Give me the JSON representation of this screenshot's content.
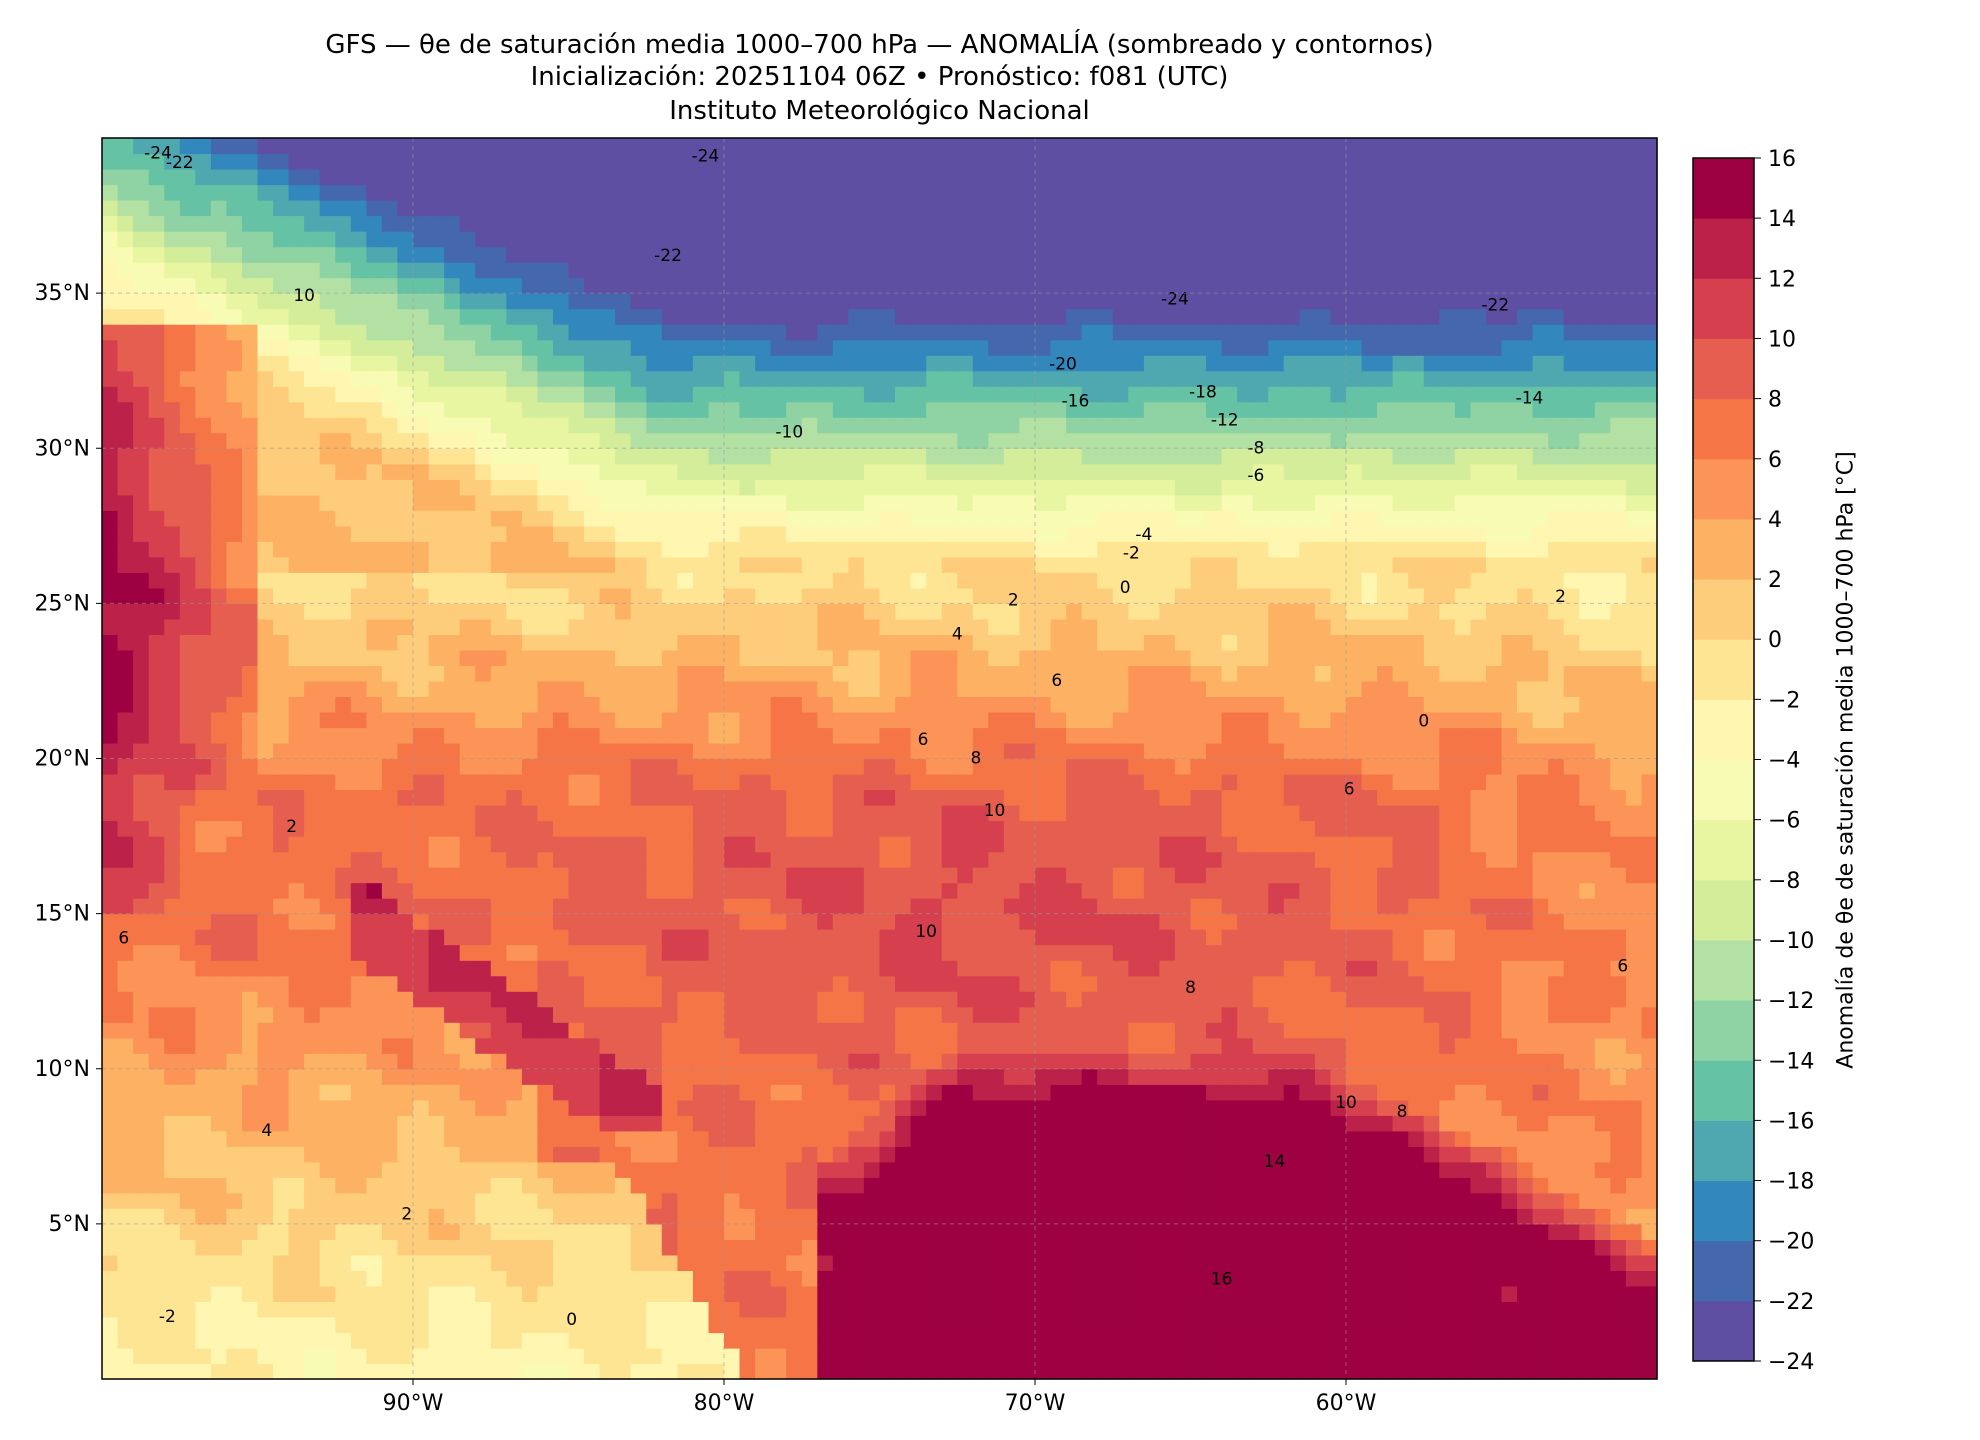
{
  "title": {
    "line1": "GFS — θe de saturación media 1000–700 hPa — ANOMALÍA (sombreado y contornos)",
    "line2": "Inicialización: 20251104 06Z   •   Pronóstico: f081 (UTC)",
    "line3": "Instituto Meteorológico Nacional"
  },
  "chart_data": {
    "type": "heatmap",
    "subtype": "filled-contour map",
    "extent": {
      "lon": [
        -100,
        -50
      ],
      "lat": [
        0,
        40
      ]
    },
    "lat_ticks": [
      {
        "value": 35,
        "label": "35°N"
      },
      {
        "value": 30,
        "label": "30°N"
      },
      {
        "value": 25,
        "label": "25°N"
      },
      {
        "value": 20,
        "label": "20°N"
      },
      {
        "value": 15,
        "label": "15°N"
      },
      {
        "value": 10,
        "label": "10°N"
      },
      {
        "value": 5,
        "label": "5°N"
      }
    ],
    "lon_ticks": [
      {
        "value": -90,
        "label": "90°W"
      },
      {
        "value": -80,
        "label": "80°W"
      },
      {
        "value": -70,
        "label": "70°W"
      },
      {
        "value": -60,
        "label": "60°W"
      }
    ],
    "grid": true,
    "colorbar": {
      "label": "Anomalía de θe de saturación media 1000–700 hPa [°C]",
      "range": [
        -24,
        16
      ],
      "ticks": [
        "16",
        "14",
        "12",
        "10",
        "8",
        "6",
        "4",
        "2",
        "0",
        "−2",
        "−4",
        "−6",
        "−8",
        "−10",
        "−12",
        "−14",
        "−16",
        "−18",
        "−20",
        "−22",
        "−24"
      ],
      "colors": [
        "#5e4fa2",
        "#4467ae",
        "#3288bd",
        "#4fa7b0",
        "#66c2a5",
        "#8fd3a4",
        "#b3e0a3",
        "#d4ed9b",
        "#e9f6a1",
        "#f7fbb3",
        "#fff7b1",
        "#fee593",
        "#fecd7c",
        "#fdb163",
        "#fb9456",
        "#f57547",
        "#e65e4f",
        "#d6404e",
        "#bb2149",
        "#9e0142"
      ],
      "position": "right"
    },
    "contour_labels": [
      {
        "text": "-24",
        "lon": -98.2,
        "lat": 39.5
      },
      {
        "text": "-22",
        "lon": -97.5,
        "lat": 39.2
      },
      {
        "text": "-24",
        "lon": -80.6,
        "lat": 39.4
      },
      {
        "text": "-22",
        "lon": -81.8,
        "lat": 36.2
      },
      {
        "text": "10",
        "lon": -93.5,
        "lat": 34.9
      },
      {
        "text": "-24",
        "lon": -65.5,
        "lat": 34.8
      },
      {
        "text": "-22",
        "lon": -55.2,
        "lat": 34.6
      },
      {
        "text": "-20",
        "lon": -69.1,
        "lat": 32.7
      },
      {
        "text": "-18",
        "lon": -64.6,
        "lat": 31.8
      },
      {
        "text": "-16",
        "lon": -68.7,
        "lat": 31.5
      },
      {
        "text": "-14",
        "lon": -54.1,
        "lat": 31.6
      },
      {
        "text": "-12",
        "lon": -63.9,
        "lat": 30.9
      },
      {
        "text": "-10",
        "lon": -77.9,
        "lat": 30.5
      },
      {
        "text": "-8",
        "lon": -62.9,
        "lat": 30.0
      },
      {
        "text": "-6",
        "lon": -62.9,
        "lat": 29.1
      },
      {
        "text": "-4",
        "lon": -66.5,
        "lat": 27.2
      },
      {
        "text": "-2",
        "lon": -66.9,
        "lat": 26.6
      },
      {
        "text": "0",
        "lon": -67.1,
        "lat": 25.5
      },
      {
        "text": "2",
        "lon": -70.7,
        "lat": 25.1
      },
      {
        "text": "2",
        "lon": -53.1,
        "lat": 25.2
      },
      {
        "text": "4",
        "lon": -72.5,
        "lat": 24.0
      },
      {
        "text": "6",
        "lon": -73.6,
        "lat": 20.6
      },
      {
        "text": "6",
        "lon": -69.3,
        "lat": 22.5
      },
      {
        "text": "8",
        "lon": -71.9,
        "lat": 20.0
      },
      {
        "text": "10",
        "lon": -71.3,
        "lat": 18.3
      },
      {
        "text": "10",
        "lon": -73.5,
        "lat": 14.4
      },
      {
        "text": "2",
        "lon": -93.9,
        "lat": 17.8
      },
      {
        "text": "6",
        "lon": -99.3,
        "lat": 14.2
      },
      {
        "text": "4",
        "lon": -94.7,
        "lat": 8.0
      },
      {
        "text": "2",
        "lon": -90.2,
        "lat": 5.3
      },
      {
        "text": "0",
        "lon": -84.9,
        "lat": 1.9
      },
      {
        "text": "-2",
        "lon": -97.9,
        "lat": 2.0
      },
      {
        "text": "16",
        "lon": -64.0,
        "lat": 3.2
      },
      {
        "text": "14",
        "lon": -62.3,
        "lat": 7.0
      },
      {
        "text": "10",
        "lon": -60.0,
        "lat": 8.9
      },
      {
        "text": "8",
        "lon": -58.2,
        "lat": 8.6
      },
      {
        "text": "6",
        "lon": -59.9,
        "lat": 19.0
      },
      {
        "text": "0",
        "lon": -57.5,
        "lat": 21.2
      },
      {
        "text": "6",
        "lon": -51.1,
        "lat": 13.3
      },
      {
        "text": "8",
        "lon": -65.0,
        "lat": 12.6
      }
    ]
  }
}
